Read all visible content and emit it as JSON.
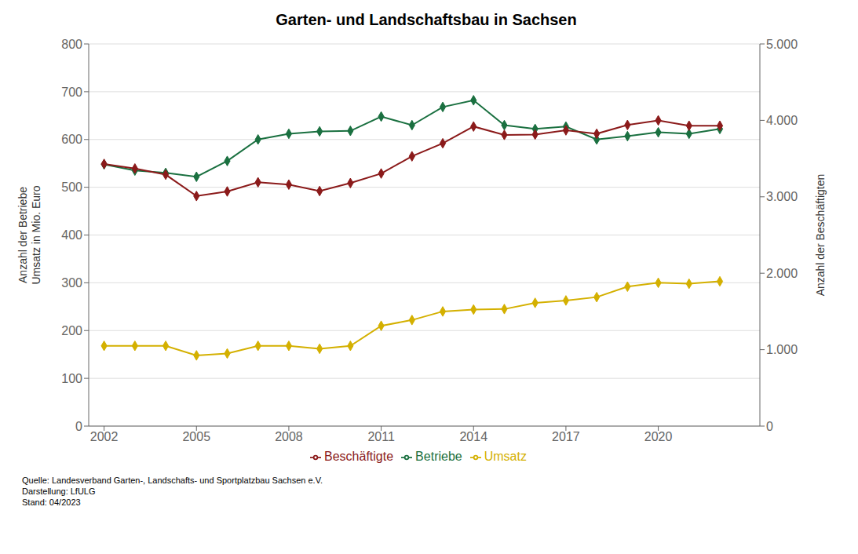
{
  "chart_data": {
    "type": "line",
    "title": "Garten- und Landschaftsbau in Sachsen",
    "y_label": "Anzahl der Betriebe\nUmsatz in Mio. Euro",
    "y2_label": "Anzahl der Beschäftigten",
    "annotations": [
      "Quelle: Landesverband Garten-, Landschafts- und Sportplatzbau Sachsen e.V.\nDarstellung: LfULG\nStand: 04/2023"
    ],
    "x": [
      2002,
      2003,
      2004,
      2005,
      2006,
      2007,
      2008,
      2009,
      2010,
      2011,
      2012,
      2013,
      2014,
      2015,
      2016,
      2017,
      2018,
      2019,
      2020,
      2021,
      2022
    ],
    "series": [
      {
        "name": "Umsatz",
        "color": "#d4b000",
        "marker": "diamond",
        "values": [
          168,
          168,
          168,
          148,
          152,
          168,
          168,
          162,
          168,
          210,
          222,
          240,
          244,
          245,
          258,
          263,
          270,
          292,
          300,
          298,
          303
        ]
      },
      {
        "name": "Betriebe",
        "color": "#1a7040",
        "marker": "diamond",
        "values": [
          548,
          535,
          530,
          522,
          555,
          600,
          612,
          617,
          618,
          648,
          630,
          668,
          682,
          630,
          622,
          627,
          600,
          607,
          615,
          612,
          622
        ]
      },
      {
        "name": "Beschäftigte",
        "color": "#8b1a1a",
        "marker": "diamond",
        "axis": "y2",
        "values": [
          3430,
          3370,
          3290,
          3010,
          3070,
          3190,
          3160,
          3075,
          3180,
          3305,
          3530,
          3700,
          3920,
          3810,
          3815,
          3870,
          3825,
          3940,
          4000,
          3930,
          3930
        ]
      }
    ],
    "xlim": [
      2001.5,
      2023.3
    ],
    "xticks": [
      2002,
      2005,
      2008,
      2011,
      2014,
      2017,
      2020
    ],
    "ylim": [
      0,
      800
    ],
    "yticks": [
      0,
      100,
      200,
      300,
      400,
      500,
      600,
      700,
      800
    ],
    "y2lim": [
      0,
      5000
    ],
    "y2ticks": [
      0,
      {
        "value": 1000,
        "label": "1.000"
      },
      {
        "value": 2000,
        "label": "2.000"
      },
      {
        "value": 3000,
        "label": "3.000"
      },
      {
        "value": 4000,
        "label": "4.000"
      },
      {
        "value": 5000,
        "label": "5.000"
      }
    ],
    "grid": true,
    "legend": "bottom"
  }
}
